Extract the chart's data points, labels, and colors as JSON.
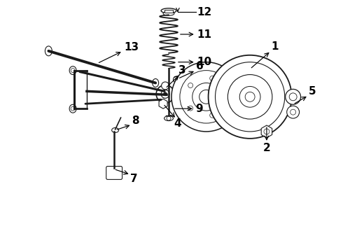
{
  "bg_color": "#ffffff",
  "line_color": "#1a1a1a",
  "text_color": "#000000",
  "fig_width": 4.9,
  "fig_height": 3.6,
  "dpi": 100,
  "font_size": 11
}
